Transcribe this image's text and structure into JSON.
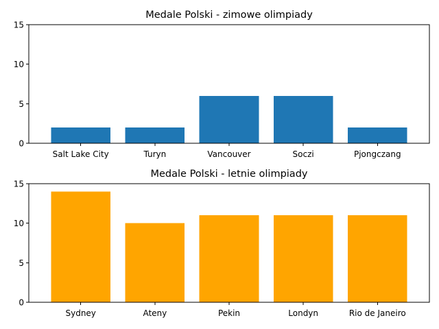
{
  "chart_data": [
    {
      "type": "bar",
      "title": "Medale Polski - zimowe olimpiady",
      "categories": [
        "Salt Lake City",
        "Turyn",
        "Vancouver",
        "Soczi",
        "Pjongczang"
      ],
      "values": [
        2,
        2,
        6,
        6,
        2
      ],
      "ylim": [
        0,
        15
      ],
      "yticks": [
        0,
        5,
        10,
        15
      ],
      "color": "#1f77b4",
      "grid": false,
      "xlabel": "",
      "ylabel": ""
    },
    {
      "type": "bar",
      "title": "Medale Polski - letnie olimpiady",
      "categories": [
        "Sydney",
        "Ateny",
        "Pekin",
        "Londyn",
        "Rio de Janeiro"
      ],
      "values": [
        14,
        10,
        11,
        11,
        11
      ],
      "ylim": [
        0,
        15
      ],
      "yticks": [
        0,
        5,
        10,
        15
      ],
      "color": "#ffa500",
      "grid": false,
      "xlabel": "",
      "ylabel": ""
    }
  ]
}
